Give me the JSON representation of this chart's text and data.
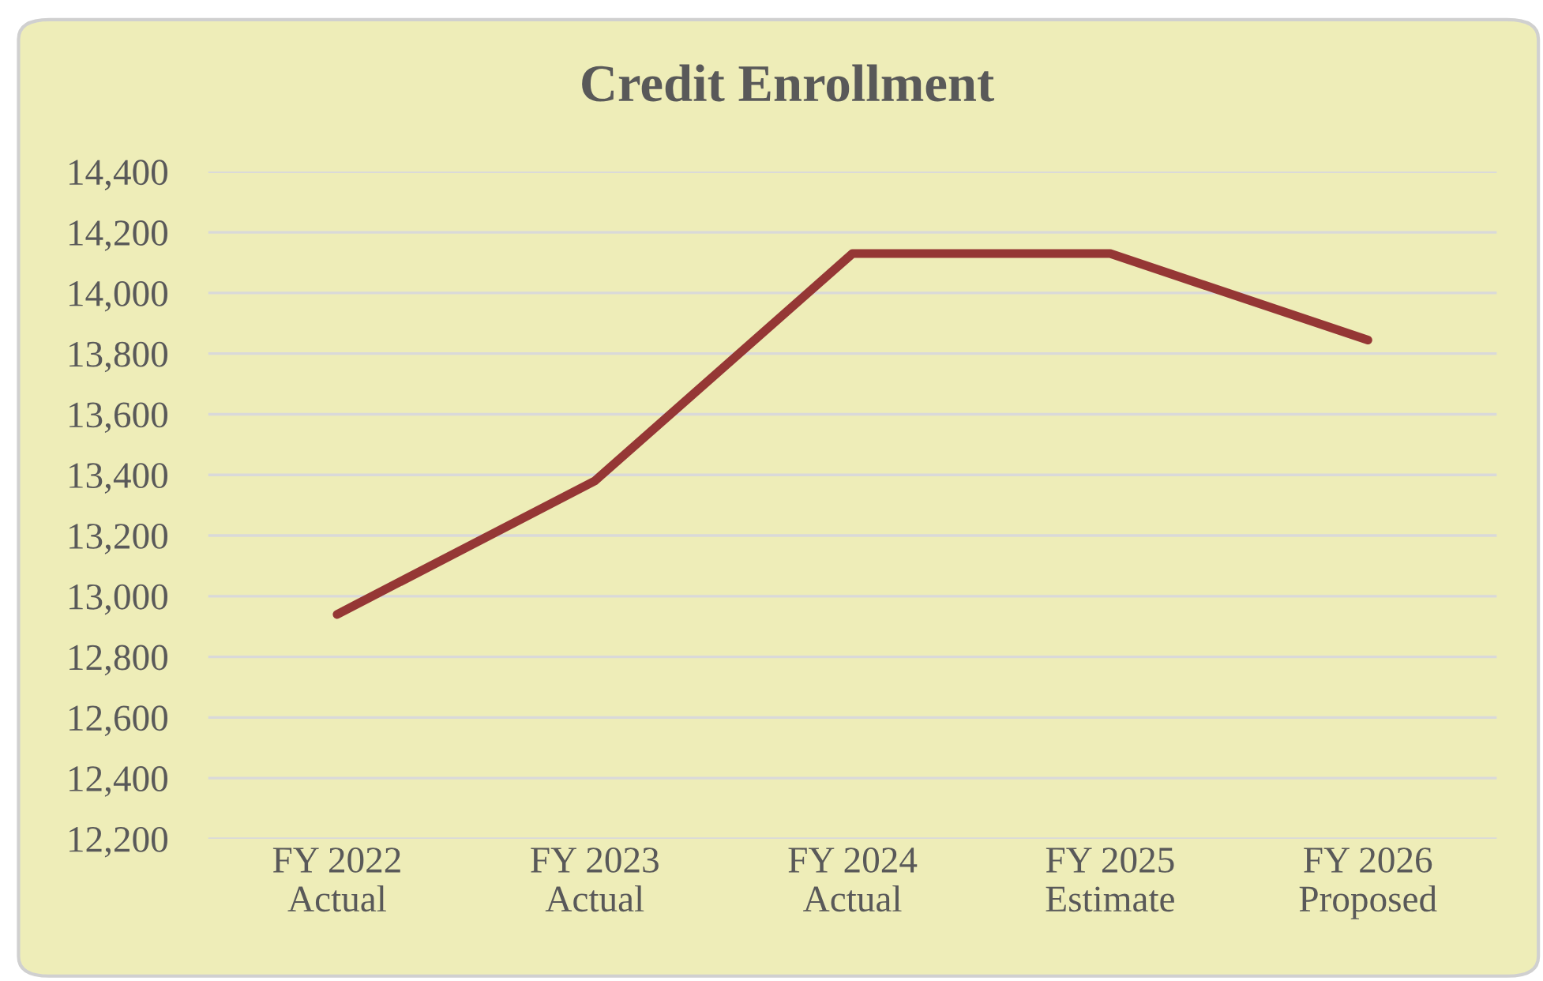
{
  "chart_data": {
    "type": "line",
    "title": "Credit Enrollment",
    "categories": [
      "FY 2022\nActual",
      "FY 2023\nActual",
      "FY 2024\nActual",
      "FY 2025\nEstimate",
      "FY 2026\nProposed"
    ],
    "series": [
      {
        "color": "#953735",
        "values": [
          12940,
          13380,
          14130,
          14130,
          13845
        ]
      }
    ],
    "ylim": [
      12200,
      14400
    ],
    "yticks": [
      {
        "value": 12200,
        "label": "12,200"
      },
      {
        "value": 12400,
        "label": "12,400"
      },
      {
        "value": 12600,
        "label": "12,600"
      },
      {
        "value": 12800,
        "label": "12,800"
      },
      {
        "value": 13000,
        "label": "13,000"
      },
      {
        "value": 13200,
        "label": "13,200"
      },
      {
        "value": 13400,
        "label": "13,400"
      },
      {
        "value": 13600,
        "label": "13,600"
      },
      {
        "value": 13800,
        "label": "13,800"
      },
      {
        "value": 14000,
        "label": "14,000"
      },
      {
        "value": 14200,
        "label": "14,200"
      },
      {
        "value": 14400,
        "label": "14,400"
      }
    ],
    "grid": "y",
    "legend": false,
    "marker": "none",
    "line_style": "solid"
  }
}
